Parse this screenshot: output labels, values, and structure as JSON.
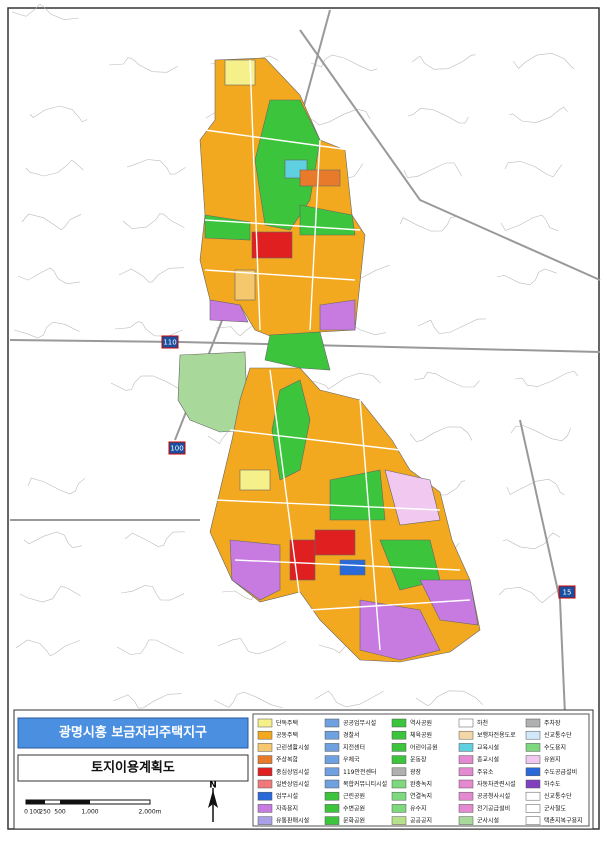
{
  "header": {
    "title": "광명시흥 보금자리주택지구",
    "subtitle": "토지이용계획도"
  },
  "scale": {
    "labels": [
      "0",
      "100",
      "250",
      "500",
      "1,000",
      "2,000m"
    ]
  },
  "compass": {
    "label": "N"
  },
  "map": {
    "labels": [
      "110",
      "100",
      "15"
    ]
  },
  "legend": {
    "items": [
      {
        "label": "단독주택",
        "color": "#f6f08a"
      },
      {
        "label": "공동주택",
        "color": "#f2a81f"
      },
      {
        "label": "근린생활시설",
        "color": "#f5c86e"
      },
      {
        "label": "주상복합",
        "color": "#e87b2b"
      },
      {
        "label": "중심상업시설",
        "color": "#e02020"
      },
      {
        "label": "일반상업시설",
        "color": "#f07a7a"
      },
      {
        "label": "업무시설",
        "color": "#2a6ad8"
      },
      {
        "label": "자족용지",
        "color": "#c77be0"
      },
      {
        "label": "유통판매시설",
        "color": "#a9a0e8"
      },
      {
        "label": "공공업무시설",
        "color": "#6fa0e0"
      },
      {
        "label": "경찰서",
        "color": "#6fa0e0"
      },
      {
        "label": "지전센터",
        "color": "#6fa0e0"
      },
      {
        "label": "우체국",
        "color": "#6fa0e0"
      },
      {
        "label": "119안전센터",
        "color": "#6fa0e0"
      },
      {
        "label": "복합커뮤니티시설",
        "color": "#6fa0e0"
      },
      {
        "label": "근린공원",
        "color": "#3cc43c"
      },
      {
        "label": "수변공원",
        "color": "#3cc43c"
      },
      {
        "label": "문화공원",
        "color": "#3cc43c"
      },
      {
        "label": "역사공원",
        "color": "#3cc43c"
      },
      {
        "label": "체육공원",
        "color": "#3cc43c"
      },
      {
        "label": "어린이공원",
        "color": "#3cc43c"
      },
      {
        "label": "운동장",
        "color": "#3cc43c"
      },
      {
        "label": "광장",
        "color": "#b0b0b0"
      },
      {
        "label": "완충녹지",
        "color": "#7ed87e"
      },
      {
        "label": "연결녹지",
        "color": "#7ed87e"
      },
      {
        "label": "유수지",
        "color": "#7ed87e"
      },
      {
        "label": "공공공지",
        "color": "#b6e08a"
      },
      {
        "label": "하천",
        "color": "#ffffff"
      },
      {
        "label": "보행자전용도로",
        "color": "#f3d7a6"
      },
      {
        "label": "교육시설",
        "color": "#5fd0e0"
      },
      {
        "label": "종교시설",
        "color": "#e48ad0"
      },
      {
        "label": "주유소",
        "color": "#e48ad0"
      },
      {
        "label": "자동차관련시설",
        "color": "#e48ad0"
      },
      {
        "label": "공공청사시설",
        "color": "#e48ad0"
      },
      {
        "label": "전기공급설비",
        "color": "#e48ad0"
      },
      {
        "label": "군사시설",
        "color": "#a8d89a"
      },
      {
        "label": "주차장",
        "color": "#b0b0b0"
      },
      {
        "label": "신교통수단",
        "color": "#d0e8f8"
      },
      {
        "label": "수도용지",
        "color": "#7ed87e"
      },
      {
        "label": "유원지",
        "color": "#f0c8f0"
      },
      {
        "label": "수도공급설비",
        "color": "#2a6ad8"
      },
      {
        "label": "하수도",
        "color": "#8040c0"
      },
      {
        "label": "신교통수단",
        "color": "#ffffff"
      },
      {
        "label": "군사철도",
        "color": "#ffffff"
      },
      {
        "label": "택촌지복구용지",
        "color": "#ffffff"
      }
    ]
  }
}
